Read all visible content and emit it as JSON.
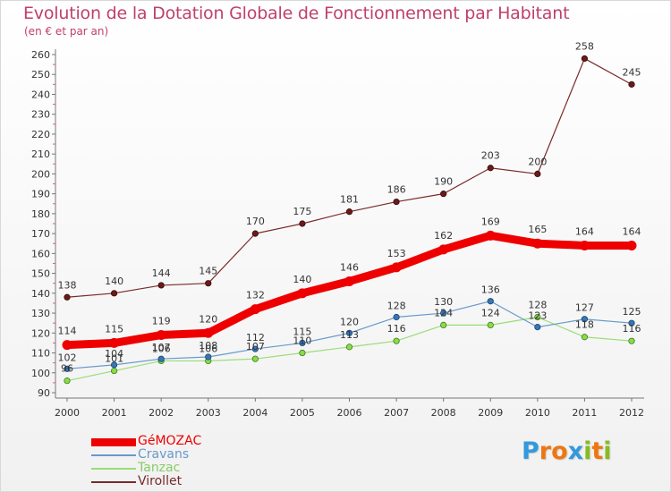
{
  "chart_data": {
    "type": "line",
    "title": "Evolution de la Dotation Globale de Fonctionnement par Habitant",
    "subtitle": "(en € et par an)",
    "xlabel": "",
    "ylabel": "",
    "categories": [
      "2000",
      "2001",
      "2002",
      "2003",
      "2004",
      "2005",
      "2006",
      "2007",
      "2008",
      "2009",
      "2010",
      "2011",
      "2012"
    ],
    "ylim": [
      90,
      260
    ],
    "yticks": [
      90,
      100,
      110,
      120,
      130,
      140,
      150,
      160,
      170,
      180,
      190,
      200,
      210,
      220,
      230,
      240,
      250,
      260
    ],
    "grid": false,
    "series": [
      {
        "name": "GéMOZAC",
        "color": "#ee0000",
        "values": [
          114,
          115,
          119,
          120,
          132,
          140,
          146,
          153,
          162,
          169,
          165,
          164,
          164
        ]
      },
      {
        "name": "Cravans",
        "color": "#6699cc",
        "values": [
          102,
          104,
          107,
          108,
          112,
          115,
          120,
          128,
          130,
          136,
          123,
          127,
          125
        ]
      },
      {
        "name": "Tanzac",
        "color": "#99dd77",
        "values": [
          96,
          101,
          106,
          106,
          107,
          110,
          113,
          116,
          124,
          124,
          128,
          118,
          116
        ]
      },
      {
        "name": "Virollet",
        "color": "#7a2a2a",
        "values": [
          138,
          140,
          144,
          145,
          170,
          175,
          181,
          186,
          190,
          203,
          200,
          258,
          245
        ]
      }
    ],
    "point_labels": {
      "GéMOZAC": [
        "114",
        "115",
        "119",
        "120",
        "132",
        "140",
        "146",
        "153",
        "162",
        "169",
        "165",
        "164",
        "164"
      ],
      "Cravans": [
        "102",
        "104",
        "107",
        "108",
        "112",
        "115",
        "120",
        "128",
        "130",
        "136",
        "123",
        "127",
        "125"
      ],
      "Tanzac": [
        "96",
        "101",
        "106",
        "106",
        "107",
        "110",
        "113",
        "116",
        "124",
        "124",
        "128",
        "118",
        "116"
      ],
      "Virollet": [
        "138",
        "140",
        "144",
        "145",
        "170",
        "175",
        "181",
        "186",
        "190",
        "203",
        "200",
        "258",
        "245"
      ]
    },
    "legend_position": "bottom-left"
  },
  "legend": {
    "items": [
      {
        "label": "GéMOZAC",
        "color": "#ee0000"
      },
      {
        "label": "Cravans",
        "color": "#6699cc"
      },
      {
        "label": "Tanzac",
        "color": "#99dd77"
      },
      {
        "label": "Virollet",
        "color": "#7a2a2a"
      }
    ]
  },
  "logo": {
    "text": "Proxiti",
    "letters": [
      {
        "ch": "P",
        "color": "#3399dd"
      },
      {
        "ch": "r",
        "color": "#ee7711"
      },
      {
        "ch": "o",
        "color": "#ee7711"
      },
      {
        "ch": "x",
        "color": "#3399dd"
      },
      {
        "ch": "i",
        "color": "#88bb22"
      },
      {
        "ch": "t",
        "color": "#ee7711"
      },
      {
        "ch": "i",
        "color": "#88bb22"
      }
    ]
  }
}
